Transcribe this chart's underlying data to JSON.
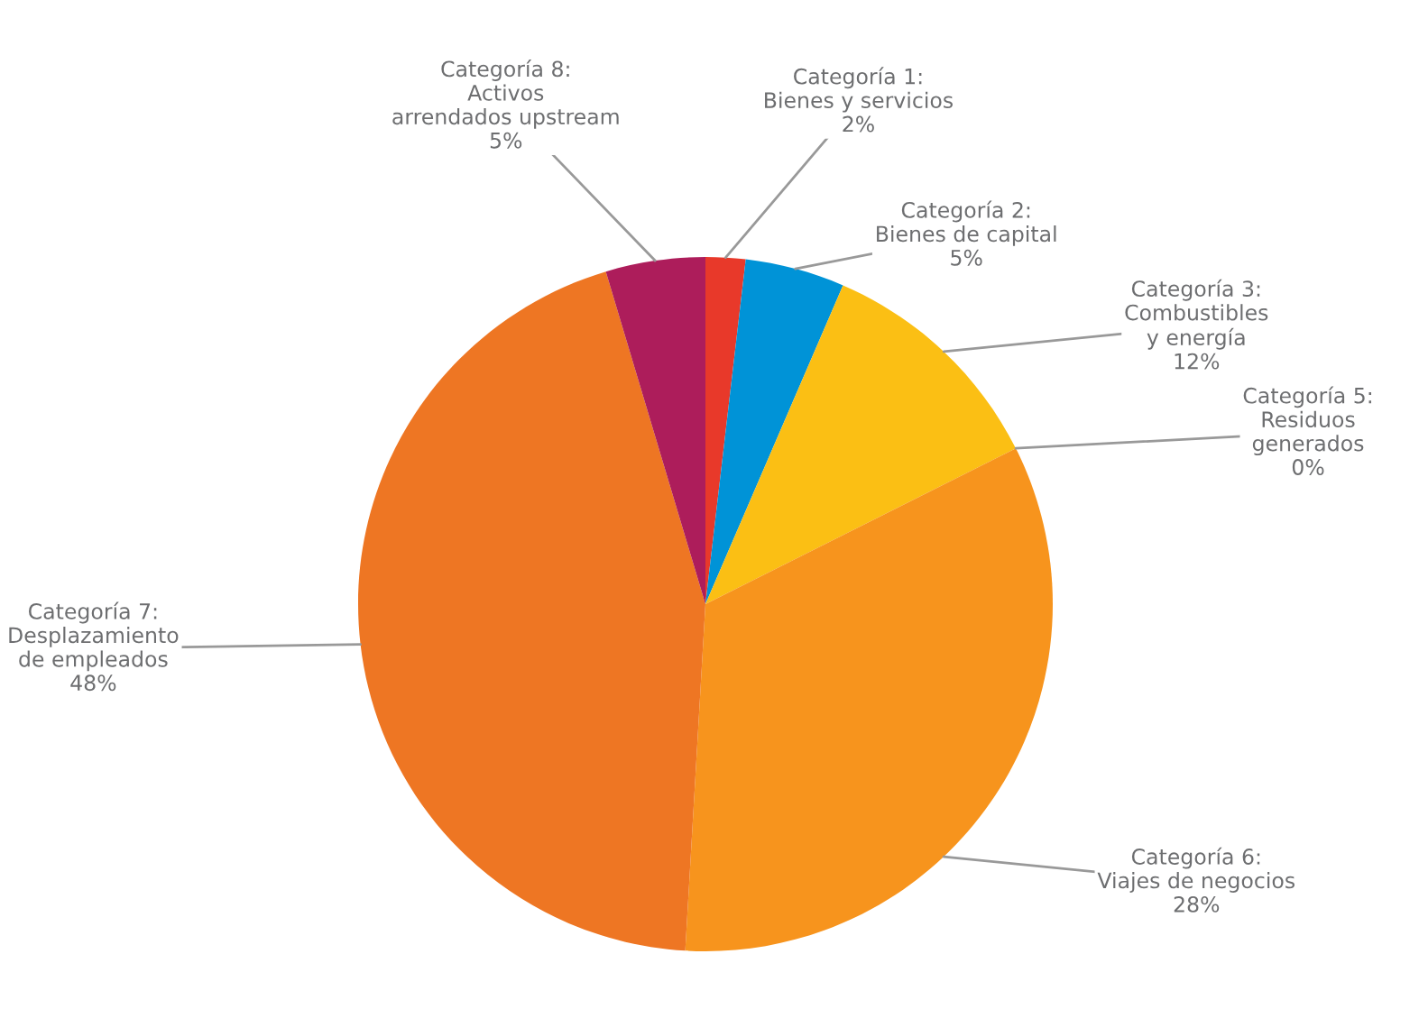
{
  "chart_data": {
    "type": "pie",
    "categories": [
      "Categoría 1:\nBienes y servicios",
      "Categoría 2:\nBienes de capital",
      "Categoría 3:\nCombustibles\ny energía",
      "Categoría 5:\nResiduos\ngenerados",
      null,
      "Categoría 6:\nViajes de negocios",
      "Categoría 7:\nDesplazamiento\nde empleados",
      "Categoría 8:\nActivos\narrendados upstream"
    ],
    "values": [
      2,
      5,
      12,
      0,
      8,
      28,
      48,
      5
    ],
    "value_labels": [
      "2%",
      "5%",
      "12%",
      "0%",
      null,
      "28%",
      "48%",
      "5%"
    ],
    "colors": [
      "#e8392a",
      "#0093d7",
      "#fbbf14",
      "#ee7623",
      "#f7941d",
      "#f7941d",
      "#ee7623",
      "#ad1d5b"
    ],
    "legend": false
  }
}
